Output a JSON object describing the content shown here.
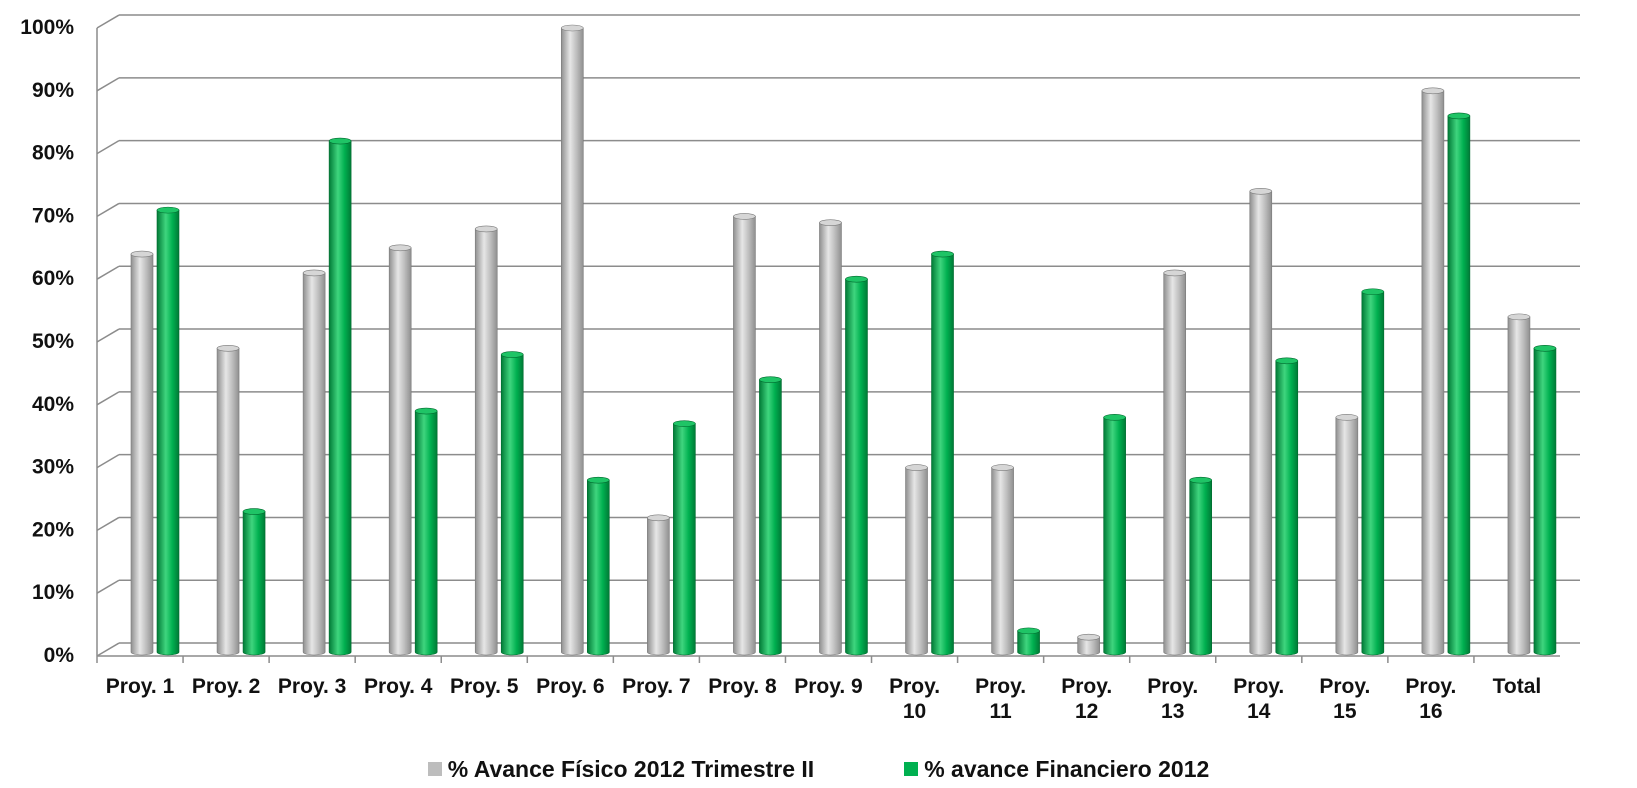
{
  "chart_data": {
    "type": "bar",
    "categories": [
      "Proy. 1",
      "Proy. 2",
      "Proy. 3",
      "Proy. 4",
      "Proy. 5",
      "Proy. 6",
      "Proy. 7",
      "Proy. 8",
      "Proy. 9",
      "Proy. 10",
      "Proy. 11",
      "Proy. 12",
      "Proy. 13",
      "Proy. 14",
      "Proy. 15",
      "Proy. 16",
      "Total"
    ],
    "series": [
      {
        "name": "% Avance Físico 2012 Trimestre II",
        "color": "#bdbdbd",
        "values": [
          64,
          49,
          61,
          65,
          68,
          100,
          22,
          70,
          69,
          30,
          30,
          3,
          61,
          74,
          38,
          90,
          54
        ]
      },
      {
        "name": "% avance Financiero 2012",
        "color": "#00b050",
        "values": [
          71,
          23,
          82,
          39,
          48,
          28,
          37,
          44,
          60,
          64,
          4,
          38,
          28,
          47,
          58,
          86,
          49
        ]
      }
    ],
    "yticks": [
      "0%",
      "10%",
      "20%",
      "30%",
      "40%",
      "50%",
      "60%",
      "70%",
      "80%",
      "90%",
      "100%"
    ],
    "ylim": [
      0,
      100
    ],
    "grid": true,
    "legend_position": "bottom"
  }
}
